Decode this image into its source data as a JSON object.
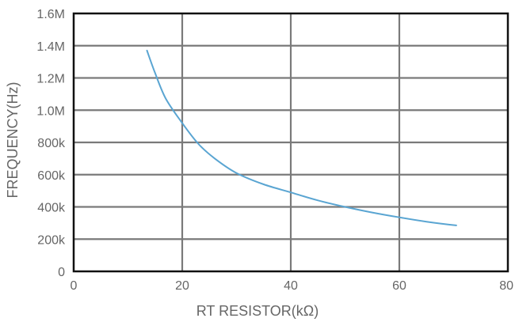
{
  "chart_data": {
    "type": "line",
    "xlabel": "RT RESISTOR(kΩ)",
    "ylabel": "FREQUENCY(Hz)",
    "xlim": [
      0,
      80
    ],
    "ylim": [
      0,
      1600000
    ],
    "x_ticks": [
      0,
      20,
      40,
      60,
      80
    ],
    "x_tick_labels": [
      "0",
      "20",
      "40",
      "60",
      "80"
    ],
    "y_ticks": [
      0,
      200000,
      400000,
      600000,
      800000,
      1000000,
      1200000,
      1400000,
      1600000
    ],
    "y_tick_labels": [
      "0",
      "200k",
      "400k",
      "600k",
      "800k",
      "1.0M",
      "1.2M",
      "1.4M",
      "1.6M"
    ],
    "grid": true,
    "series": [
      {
        "color": "#5aa5d2",
        "x": [
          13.5,
          15,
          17,
          20,
          23,
          26,
          30,
          35,
          40,
          45,
          50,
          55,
          60,
          65,
          70.5
        ],
        "y": [
          1370000,
          1230000,
          1070000,
          920000,
          790000,
          700000,
          610000,
          540000,
          490000,
          440000,
          400000,
          365000,
          335000,
          308000,
          285000
        ]
      }
    ],
    "colors": {
      "line": "#5aa5d2",
      "grid": "#7a7a7a",
      "frame": "#111111",
      "text": "#666666"
    }
  }
}
